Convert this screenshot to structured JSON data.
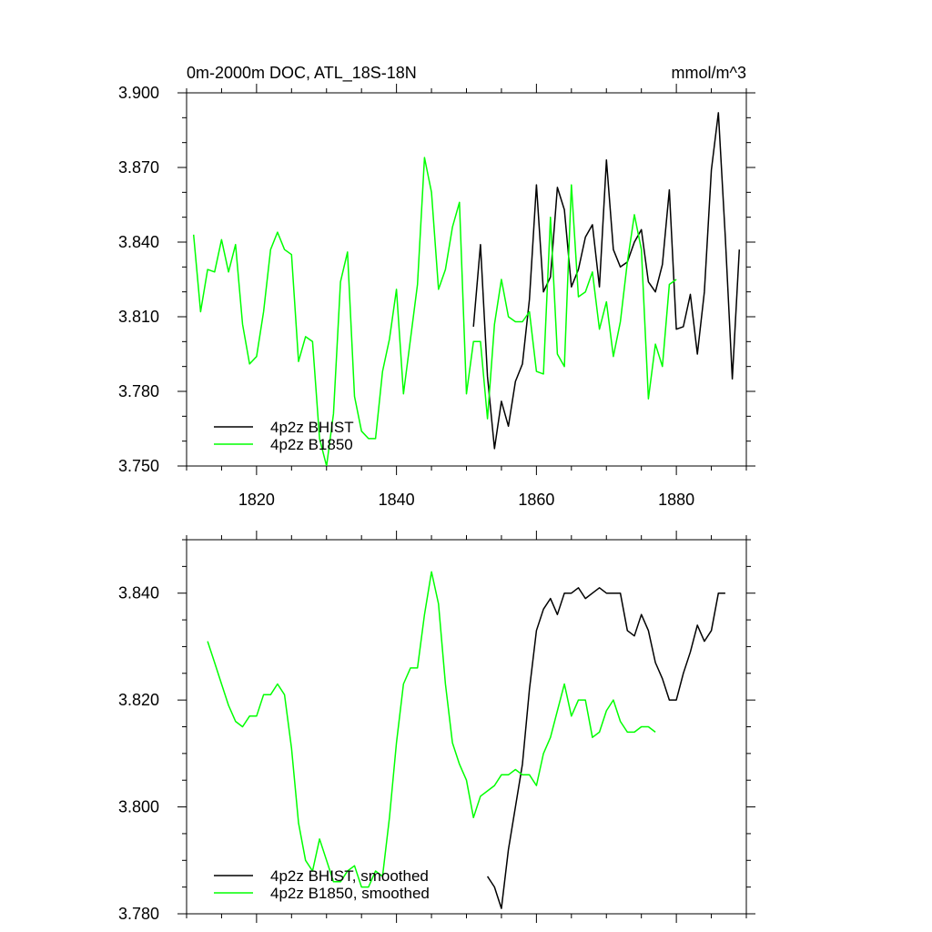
{
  "header": {
    "title": "0m-2000m DOC, ATL_18S-18N",
    "units": "mmol/m^3"
  },
  "chart_data": [
    {
      "type": "line",
      "title": "0m-2000m DOC, ATL_18S-18N",
      "units": "mmol/m^3",
      "xlim": [
        1810,
        1890
      ],
      "ylim": [
        3.75,
        3.9
      ],
      "xticks": [
        1820,
        1840,
        1860,
        1880
      ],
      "xtick_labels": [
        "1820",
        "1840",
        "1860",
        "1880"
      ],
      "yticks": [
        3.75,
        3.78,
        3.81,
        3.84,
        3.87,
        3.9
      ],
      "ytick_labels": [
        "3.750",
        "3.780",
        "3.810",
        "3.840",
        "3.870",
        "3.900"
      ],
      "grid": false,
      "legend_position": "bottom-left",
      "series": [
        {
          "name": "4p2z BHIST",
          "color": "#000000",
          "x": [
            1851,
            1852,
            1853,
            1854,
            1855,
            1856,
            1857,
            1858,
            1859,
            1860,
            1861,
            1862,
            1863,
            1864,
            1865,
            1866,
            1867,
            1868,
            1869,
            1870,
            1871,
            1872,
            1873,
            1874,
            1875,
            1876,
            1877,
            1878,
            1879,
            1880,
            1881,
            1882,
            1883,
            1884,
            1885,
            1886,
            1887,
            1888,
            1889
          ],
          "y": [
            3.806,
            3.839,
            3.786,
            3.757,
            3.776,
            3.766,
            3.784,
            3.791,
            3.817,
            3.863,
            3.82,
            3.826,
            3.862,
            3.853,
            3.822,
            3.829,
            3.842,
            3.847,
            3.822,
            3.873,
            3.837,
            3.83,
            3.832,
            3.84,
            3.845,
            3.824,
            3.82,
            3.831,
            3.861,
            3.805,
            3.806,
            3.819,
            3.795,
            3.82,
            3.869,
            3.892,
            3.842,
            3.785,
            3.837
          ]
        },
        {
          "name": "4p2z B1850",
          "color": "#00ff00",
          "x": [
            1811,
            1812,
            1813,
            1814,
            1815,
            1816,
            1817,
            1818,
            1819,
            1820,
            1821,
            1822,
            1823,
            1824,
            1825,
            1826,
            1827,
            1828,
            1829,
            1830,
            1831,
            1832,
            1833,
            1834,
            1835,
            1836,
            1837,
            1838,
            1839,
            1840,
            1841,
            1842,
            1843,
            1844,
            1845,
            1846,
            1847,
            1848,
            1849,
            1850,
            1851,
            1852,
            1853,
            1854,
            1855,
            1856,
            1857,
            1858,
            1859,
            1860,
            1861,
            1862,
            1863,
            1864,
            1865,
            1866,
            1867,
            1868,
            1869,
            1870,
            1871,
            1872,
            1873,
            1874,
            1875,
            1876,
            1877,
            1878,
            1879,
            1880
          ],
          "y": [
            3.843,
            3.812,
            3.829,
            3.828,
            3.841,
            3.828,
            3.839,
            3.807,
            3.791,
            3.794,
            3.812,
            3.837,
            3.844,
            3.837,
            3.835,
            3.792,
            3.802,
            3.8,
            3.761,
            3.75,
            3.771,
            3.824,
            3.836,
            3.778,
            3.764,
            3.761,
            3.761,
            3.788,
            3.801,
            3.821,
            3.779,
            3.801,
            3.823,
            3.874,
            3.86,
            3.821,
            3.829,
            3.846,
            3.856,
            3.779,
            3.8,
            3.8,
            3.769,
            3.807,
            3.825,
            3.81,
            3.808,
            3.808,
            3.812,
            3.788,
            3.787,
            3.85,
            3.795,
            3.79,
            3.863,
            3.818,
            3.82,
            3.828,
            3.805,
            3.816,
            3.794,
            3.808,
            3.832,
            3.851,
            3.837,
            3.777,
            3.799,
            3.79,
            3.823,
            3.825
          ]
        }
      ]
    },
    {
      "type": "line",
      "xlim": [
        1810,
        1890
      ],
      "ylim": [
        3.78,
        3.85
      ],
      "xticks": [
        1820,
        1840,
        1860,
        1880
      ],
      "xtick_labels": [],
      "yticks": [
        3.78,
        3.8,
        3.82,
        3.84
      ],
      "ytick_labels": [
        "3.780",
        "3.800",
        "3.820",
        "3.840"
      ],
      "grid": false,
      "legend_position": "bottom-left",
      "series": [
        {
          "name": "4p2z BHIST, smoothed",
          "color": "#000000",
          "x": [
            1853,
            1854,
            1855,
            1856,
            1857,
            1858,
            1859,
            1860,
            1861,
            1862,
            1863,
            1864,
            1865,
            1866,
            1867,
            1868,
            1869,
            1870,
            1871,
            1872,
            1873,
            1874,
            1875,
            1876,
            1877,
            1878,
            1879,
            1880,
            1881,
            1882,
            1883,
            1884,
            1885,
            1886,
            1887
          ],
          "y": [
            3.787,
            3.785,
            3.781,
            3.792,
            3.8,
            3.808,
            3.822,
            3.833,
            3.837,
            3.839,
            3.836,
            3.84,
            3.84,
            3.841,
            3.839,
            3.84,
            3.841,
            3.84,
            3.84,
            3.84,
            3.833,
            3.832,
            3.836,
            3.833,
            3.827,
            3.824,
            3.82,
            3.82,
            3.825,
            3.829,
            3.834,
            3.831,
            3.833,
            3.84,
            3.84
          ]
        },
        {
          "name": "4p2z B1850, smoothed",
          "color": "#00ff00",
          "x": [
            1813,
            1814,
            1815,
            1816,
            1817,
            1818,
            1819,
            1820,
            1821,
            1822,
            1823,
            1824,
            1825,
            1826,
            1827,
            1828,
            1829,
            1830,
            1831,
            1832,
            1833,
            1834,
            1835,
            1836,
            1837,
            1838,
            1839,
            1840,
            1841,
            1842,
            1843,
            1844,
            1845,
            1846,
            1847,
            1848,
            1849,
            1850,
            1851,
            1852,
            1853,
            1854,
            1855,
            1856,
            1857,
            1858,
            1859,
            1860,
            1861,
            1862,
            1863,
            1864,
            1865,
            1866,
            1867,
            1868,
            1869,
            1870,
            1871,
            1872,
            1873,
            1874,
            1875,
            1876,
            1877
          ],
          "y": [
            3.831,
            3.827,
            3.823,
            3.819,
            3.816,
            3.815,
            3.817,
            3.817,
            3.821,
            3.821,
            3.823,
            3.821,
            3.811,
            3.797,
            3.79,
            3.788,
            3.794,
            3.79,
            3.786,
            3.786,
            3.788,
            3.789,
            3.785,
            3.785,
            3.788,
            3.787,
            3.798,
            3.812,
            3.823,
            3.826,
            3.826,
            3.836,
            3.844,
            3.838,
            3.823,
            3.812,
            3.808,
            3.805,
            3.798,
            3.802,
            3.803,
            3.804,
            3.806,
            3.806,
            3.807,
            3.806,
            3.806,
            3.804,
            3.81,
            3.813,
            3.818,
            3.823,
            3.817,
            3.82,
            3.82,
            3.813,
            3.814,
            3.818,
            3.82,
            3.816,
            3.814,
            3.814,
            3.815,
            3.815,
            3.814
          ]
        }
      ]
    }
  ]
}
